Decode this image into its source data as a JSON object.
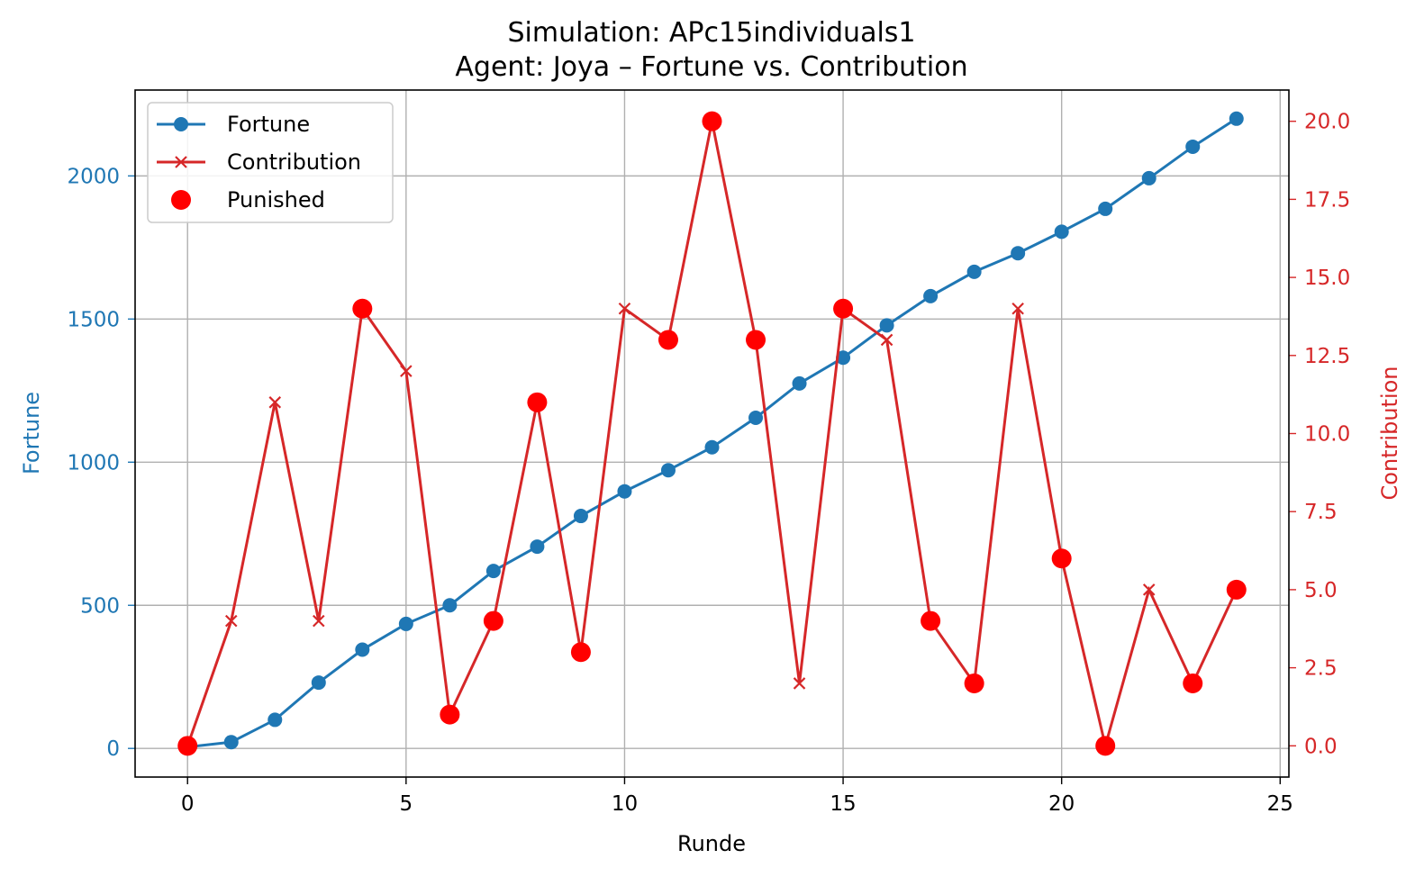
{
  "chart_data": {
    "type": "line",
    "title": "Simulation: APc15individuals1",
    "subtitle": "Agent: Joya – Fortune vs. Contribution",
    "xlabel": "Runde",
    "ylabel": "Fortune",
    "y2label": "Contribution",
    "xlim": [
      -1.2,
      25.2
    ],
    "ylim": [
      -100,
      2300
    ],
    "y2lim": [
      -1,
      21
    ],
    "xticks": [
      "0",
      "5",
      "10",
      "15",
      "20",
      "25"
    ],
    "yticks": [
      "0",
      "500",
      "1000",
      "1500",
      "2000"
    ],
    "y2ticks": [
      "0.0",
      "2.5",
      "5.0",
      "7.5",
      "10.0",
      "12.5",
      "15.0",
      "17.5",
      "20.0"
    ],
    "grid": true,
    "legend_position": "top-left",
    "x": [
      0,
      1,
      2,
      3,
      4,
      5,
      6,
      7,
      8,
      9,
      10,
      11,
      12,
      13,
      14,
      15,
      16,
      17,
      18,
      19,
      20,
      21,
      22,
      23,
      24
    ],
    "series": [
      {
        "name": "Fortune",
        "axis": "left",
        "color": "#1f77b4",
        "marker": "circle",
        "values": [
          5,
          22,
          100,
          230,
          345,
          435,
          500,
          620,
          705,
          812,
          898,
          972,
          1052,
          1155,
          1275,
          1365,
          1478,
          1580,
          1665,
          1730,
          1805,
          1885,
          1992,
          2102,
          2200
        ]
      },
      {
        "name": "Contribution",
        "axis": "right",
        "color": "#d62728",
        "marker": "x",
        "values": [
          0,
          4,
          11,
          4,
          14,
          12,
          1,
          4,
          11,
          3,
          14,
          13,
          20,
          13,
          2,
          14,
          13,
          4,
          2,
          14,
          6,
          0,
          5,
          2,
          5
        ]
      },
      {
        "name": "Punished",
        "axis": "right",
        "color": "#ff0000",
        "marker": "dot",
        "x": [
          0,
          4,
          6,
          7,
          8,
          9,
          11,
          12,
          13,
          15,
          17,
          18,
          20,
          21,
          23,
          24
        ],
        "values": [
          0,
          14,
          1,
          4,
          11,
          3,
          13,
          20,
          13,
          14,
          4,
          2,
          6,
          0,
          2,
          5
        ]
      }
    ]
  }
}
